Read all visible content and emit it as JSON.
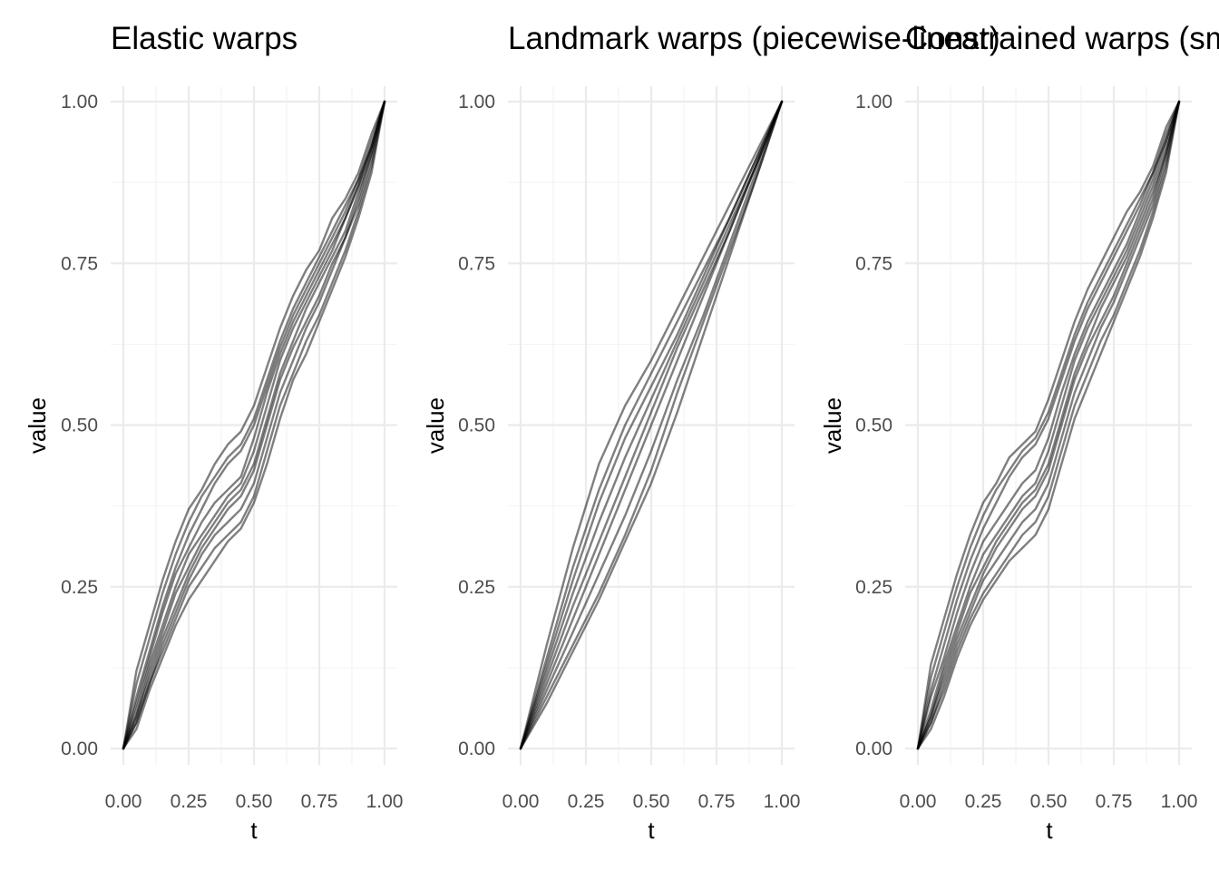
{
  "chart_data": [
    {
      "type": "line",
      "title": "Elastic warps",
      "xlabel": "t",
      "ylabel": "value",
      "xlim": [
        0,
        1
      ],
      "ylim": [
        0,
        1
      ],
      "x_ticks": [
        "0.00",
        "0.25",
        "0.50",
        "0.75",
        "1.00"
      ],
      "y_ticks": [
        "0.00",
        "0.25",
        "0.50",
        "0.75",
        "1.00"
      ],
      "grid": true,
      "x": [
        0,
        0.05,
        0.1,
        0.15,
        0.2,
        0.25,
        0.3,
        0.35,
        0.4,
        0.45,
        0.5,
        0.55,
        0.6,
        0.65,
        0.7,
        0.75,
        0.8,
        0.85,
        0.9,
        0.95,
        1
      ],
      "series": [
        {
          "values": [
            0,
            0.12,
            0.19,
            0.26,
            0.32,
            0.37,
            0.4,
            0.44,
            0.47,
            0.49,
            0.53,
            0.59,
            0.65,
            0.7,
            0.74,
            0.77,
            0.82,
            0.85,
            0.89,
            0.95,
            1
          ]
        },
        {
          "values": [
            0,
            0.1,
            0.17,
            0.24,
            0.3,
            0.35,
            0.39,
            0.42,
            0.45,
            0.47,
            0.51,
            0.57,
            0.63,
            0.68,
            0.72,
            0.76,
            0.8,
            0.84,
            0.88,
            0.94,
            1
          ]
        },
        {
          "values": [
            0,
            0.08,
            0.15,
            0.22,
            0.28,
            0.33,
            0.37,
            0.41,
            0.44,
            0.46,
            0.5,
            0.56,
            0.62,
            0.67,
            0.71,
            0.75,
            0.79,
            0.83,
            0.88,
            0.93,
            1
          ]
        },
        {
          "values": [
            0,
            0.07,
            0.14,
            0.21,
            0.27,
            0.31,
            0.35,
            0.38,
            0.4,
            0.42,
            0.48,
            0.55,
            0.61,
            0.66,
            0.7,
            0.74,
            0.78,
            0.82,
            0.87,
            0.93,
            1
          ]
        },
        {
          "values": [
            0,
            0.06,
            0.13,
            0.19,
            0.25,
            0.3,
            0.33,
            0.36,
            0.39,
            0.41,
            0.46,
            0.53,
            0.6,
            0.65,
            0.69,
            0.73,
            0.77,
            0.82,
            0.87,
            0.93,
            1
          ]
        },
        {
          "values": [
            0,
            0.05,
            0.12,
            0.18,
            0.24,
            0.28,
            0.32,
            0.35,
            0.38,
            0.4,
            0.44,
            0.51,
            0.58,
            0.63,
            0.68,
            0.72,
            0.76,
            0.8,
            0.86,
            0.92,
            1
          ]
        },
        {
          "values": [
            0,
            0.05,
            0.11,
            0.17,
            0.22,
            0.27,
            0.31,
            0.34,
            0.37,
            0.39,
            0.43,
            0.5,
            0.57,
            0.62,
            0.66,
            0.7,
            0.75,
            0.79,
            0.85,
            0.92,
            1
          ]
        },
        {
          "values": [
            0,
            0.04,
            0.1,
            0.16,
            0.21,
            0.26,
            0.3,
            0.33,
            0.35,
            0.37,
            0.41,
            0.48,
            0.55,
            0.6,
            0.65,
            0.69,
            0.74,
            0.79,
            0.84,
            0.91,
            1
          ]
        },
        {
          "values": [
            0,
            0.04,
            0.1,
            0.15,
            0.2,
            0.25,
            0.28,
            0.31,
            0.33,
            0.35,
            0.39,
            0.46,
            0.53,
            0.58,
            0.63,
            0.67,
            0.72,
            0.77,
            0.83,
            0.9,
            1
          ]
        },
        {
          "values": [
            0,
            0.03,
            0.09,
            0.14,
            0.19,
            0.23,
            0.26,
            0.29,
            0.32,
            0.34,
            0.38,
            0.44,
            0.51,
            0.57,
            0.61,
            0.66,
            0.71,
            0.76,
            0.82,
            0.89,
            1
          ]
        }
      ]
    },
    {
      "type": "line",
      "title": "Landmark warps (piecewise-linear)",
      "xlabel": "t",
      "ylabel": "value",
      "xlim": [
        0,
        1
      ],
      "ylim": [
        0,
        1
      ],
      "x_ticks": [
        "0.00",
        "0.25",
        "0.50",
        "0.75",
        "1.00"
      ],
      "y_ticks": [
        "0.00",
        "0.25",
        "0.50",
        "0.75",
        "1.00"
      ],
      "grid": true,
      "x": [
        0,
        0.1,
        0.2,
        0.3,
        0.4,
        0.5,
        0.6,
        0.7,
        0.8,
        0.9,
        1
      ],
      "series": [
        {
          "values": [
            0,
            0.16,
            0.31,
            0.44,
            0.53,
            0.6,
            0.68,
            0.76,
            0.84,
            0.92,
            1
          ]
        },
        {
          "values": [
            0,
            0.14,
            0.28,
            0.4,
            0.5,
            0.58,
            0.66,
            0.74,
            0.82,
            0.91,
            1
          ]
        },
        {
          "values": [
            0,
            0.13,
            0.26,
            0.38,
            0.48,
            0.56,
            0.64,
            0.73,
            0.82,
            0.91,
            1
          ]
        },
        {
          "values": [
            0,
            0.12,
            0.24,
            0.35,
            0.45,
            0.54,
            0.63,
            0.72,
            0.81,
            0.9,
            1
          ]
        },
        {
          "values": [
            0,
            0.11,
            0.22,
            0.32,
            0.42,
            0.52,
            0.62,
            0.71,
            0.8,
            0.9,
            1
          ]
        },
        {
          "values": [
            0,
            0.1,
            0.2,
            0.3,
            0.4,
            0.5,
            0.6,
            0.7,
            0.8,
            0.9,
            1
          ]
        },
        {
          "values": [
            0,
            0.09,
            0.18,
            0.27,
            0.36,
            0.46,
            0.57,
            0.67,
            0.78,
            0.89,
            1
          ]
        },
        {
          "values": [
            0,
            0.08,
            0.16,
            0.24,
            0.33,
            0.43,
            0.55,
            0.66,
            0.77,
            0.88,
            1
          ]
        },
        {
          "values": [
            0,
            0.07,
            0.15,
            0.23,
            0.32,
            0.41,
            0.52,
            0.64,
            0.76,
            0.88,
            1
          ]
        }
      ]
    },
    {
      "type": "line",
      "title": "Constrained warps (sm",
      "xlabel": "t",
      "ylabel": "value",
      "xlim": [
        0,
        1
      ],
      "ylim": [
        0,
        1
      ],
      "x_ticks": [
        "0.00",
        "0.25",
        "0.50",
        "0.75",
        "1.00"
      ],
      "y_ticks": [
        "0.00",
        "0.25",
        "0.50",
        "0.75",
        "1.00"
      ],
      "grid": true,
      "x": [
        0,
        0.05,
        0.1,
        0.15,
        0.2,
        0.25,
        0.3,
        0.35,
        0.4,
        0.45,
        0.5,
        0.55,
        0.6,
        0.65,
        0.7,
        0.75,
        0.8,
        0.85,
        0.9,
        0.95,
        1
      ],
      "series": [
        {
          "values": [
            0,
            0.13,
            0.2,
            0.27,
            0.33,
            0.38,
            0.41,
            0.45,
            0.47,
            0.49,
            0.54,
            0.6,
            0.66,
            0.71,
            0.75,
            0.79,
            0.83,
            0.86,
            0.9,
            0.96,
            1
          ]
        },
        {
          "values": [
            0,
            0.11,
            0.18,
            0.25,
            0.31,
            0.36,
            0.4,
            0.43,
            0.46,
            0.48,
            0.52,
            0.58,
            0.64,
            0.69,
            0.73,
            0.77,
            0.81,
            0.85,
            0.89,
            0.95,
            1
          ]
        },
        {
          "values": [
            0,
            0.09,
            0.16,
            0.23,
            0.29,
            0.34,
            0.38,
            0.42,
            0.45,
            0.47,
            0.51,
            0.57,
            0.63,
            0.68,
            0.72,
            0.76,
            0.8,
            0.84,
            0.89,
            0.94,
            1
          ]
        },
        {
          "values": [
            0,
            0.08,
            0.14,
            0.21,
            0.27,
            0.32,
            0.35,
            0.38,
            0.41,
            0.43,
            0.48,
            0.55,
            0.61,
            0.66,
            0.7,
            0.74,
            0.78,
            0.83,
            0.88,
            0.94,
            1
          ]
        },
        {
          "values": [
            0,
            0.06,
            0.13,
            0.19,
            0.25,
            0.3,
            0.33,
            0.36,
            0.39,
            0.41,
            0.46,
            0.53,
            0.6,
            0.65,
            0.69,
            0.73,
            0.77,
            0.82,
            0.87,
            0.93,
            1
          ]
        },
        {
          "values": [
            0,
            0.05,
            0.12,
            0.18,
            0.24,
            0.28,
            0.32,
            0.35,
            0.38,
            0.4,
            0.44,
            0.51,
            0.58,
            0.63,
            0.68,
            0.72,
            0.76,
            0.81,
            0.86,
            0.92,
            1
          ]
        },
        {
          "values": [
            0,
            0.05,
            0.11,
            0.17,
            0.22,
            0.27,
            0.31,
            0.34,
            0.37,
            0.39,
            0.43,
            0.5,
            0.57,
            0.62,
            0.66,
            0.7,
            0.75,
            0.8,
            0.85,
            0.92,
            1
          ]
        },
        {
          "values": [
            0,
            0.04,
            0.1,
            0.16,
            0.21,
            0.26,
            0.29,
            0.32,
            0.35,
            0.37,
            0.41,
            0.48,
            0.55,
            0.6,
            0.65,
            0.69,
            0.74,
            0.79,
            0.84,
            0.91,
            1
          ]
        },
        {
          "values": [
            0,
            0.04,
            0.09,
            0.15,
            0.2,
            0.24,
            0.27,
            0.3,
            0.33,
            0.35,
            0.39,
            0.46,
            0.53,
            0.58,
            0.63,
            0.67,
            0.72,
            0.77,
            0.83,
            0.9,
            1
          ]
        },
        {
          "values": [
            0,
            0.03,
            0.08,
            0.14,
            0.19,
            0.23,
            0.26,
            0.29,
            0.31,
            0.33,
            0.37,
            0.44,
            0.51,
            0.56,
            0.61,
            0.66,
            0.71,
            0.76,
            0.82,
            0.89,
            1
          ]
        }
      ]
    }
  ]
}
